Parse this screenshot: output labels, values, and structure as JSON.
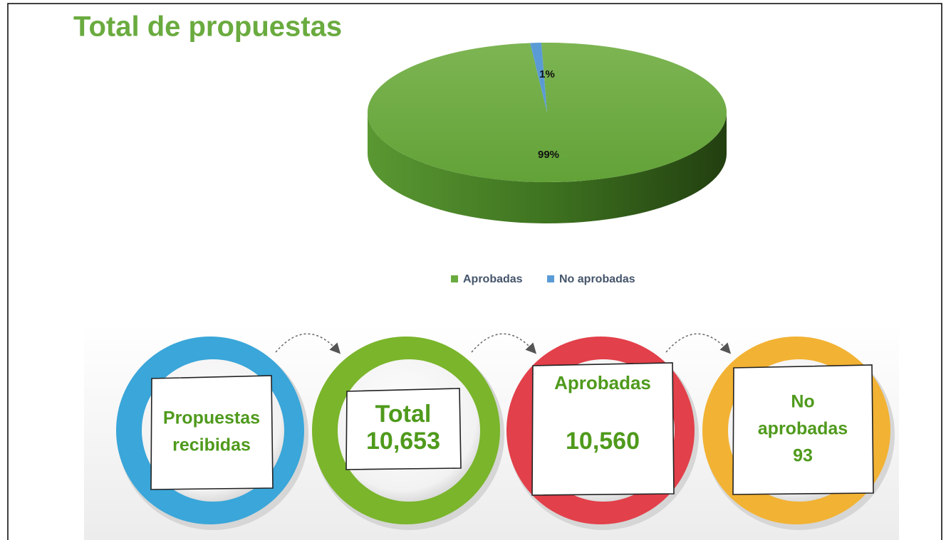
{
  "chart_data": {
    "type": "pie",
    "title": "Total de propuestas",
    "categories": [
      "Aprobadas",
      "No aprobadas"
    ],
    "values": [
      99,
      1
    ],
    "value_labels": [
      "99%",
      "1%"
    ],
    "colors": [
      "#6aab3f",
      "#5b9bd5"
    ],
    "legend": "bottom"
  },
  "infographic": {
    "items": [
      {
        "label_lines": [
          "Propuestas",
          "recibidas"
        ],
        "ring": "#3aa6d9"
      },
      {
        "label_lines": [
          "Total"
        ],
        "value": "10,653",
        "ring": "#7ab52b"
      },
      {
        "label_lines": [
          "Aprobadas"
        ],
        "value": "10,560",
        "ring": "#e2404a"
      },
      {
        "label_lines": [
          "No",
          "aprobadas"
        ],
        "value": "93",
        "ring": "#f2b233"
      }
    ]
  }
}
